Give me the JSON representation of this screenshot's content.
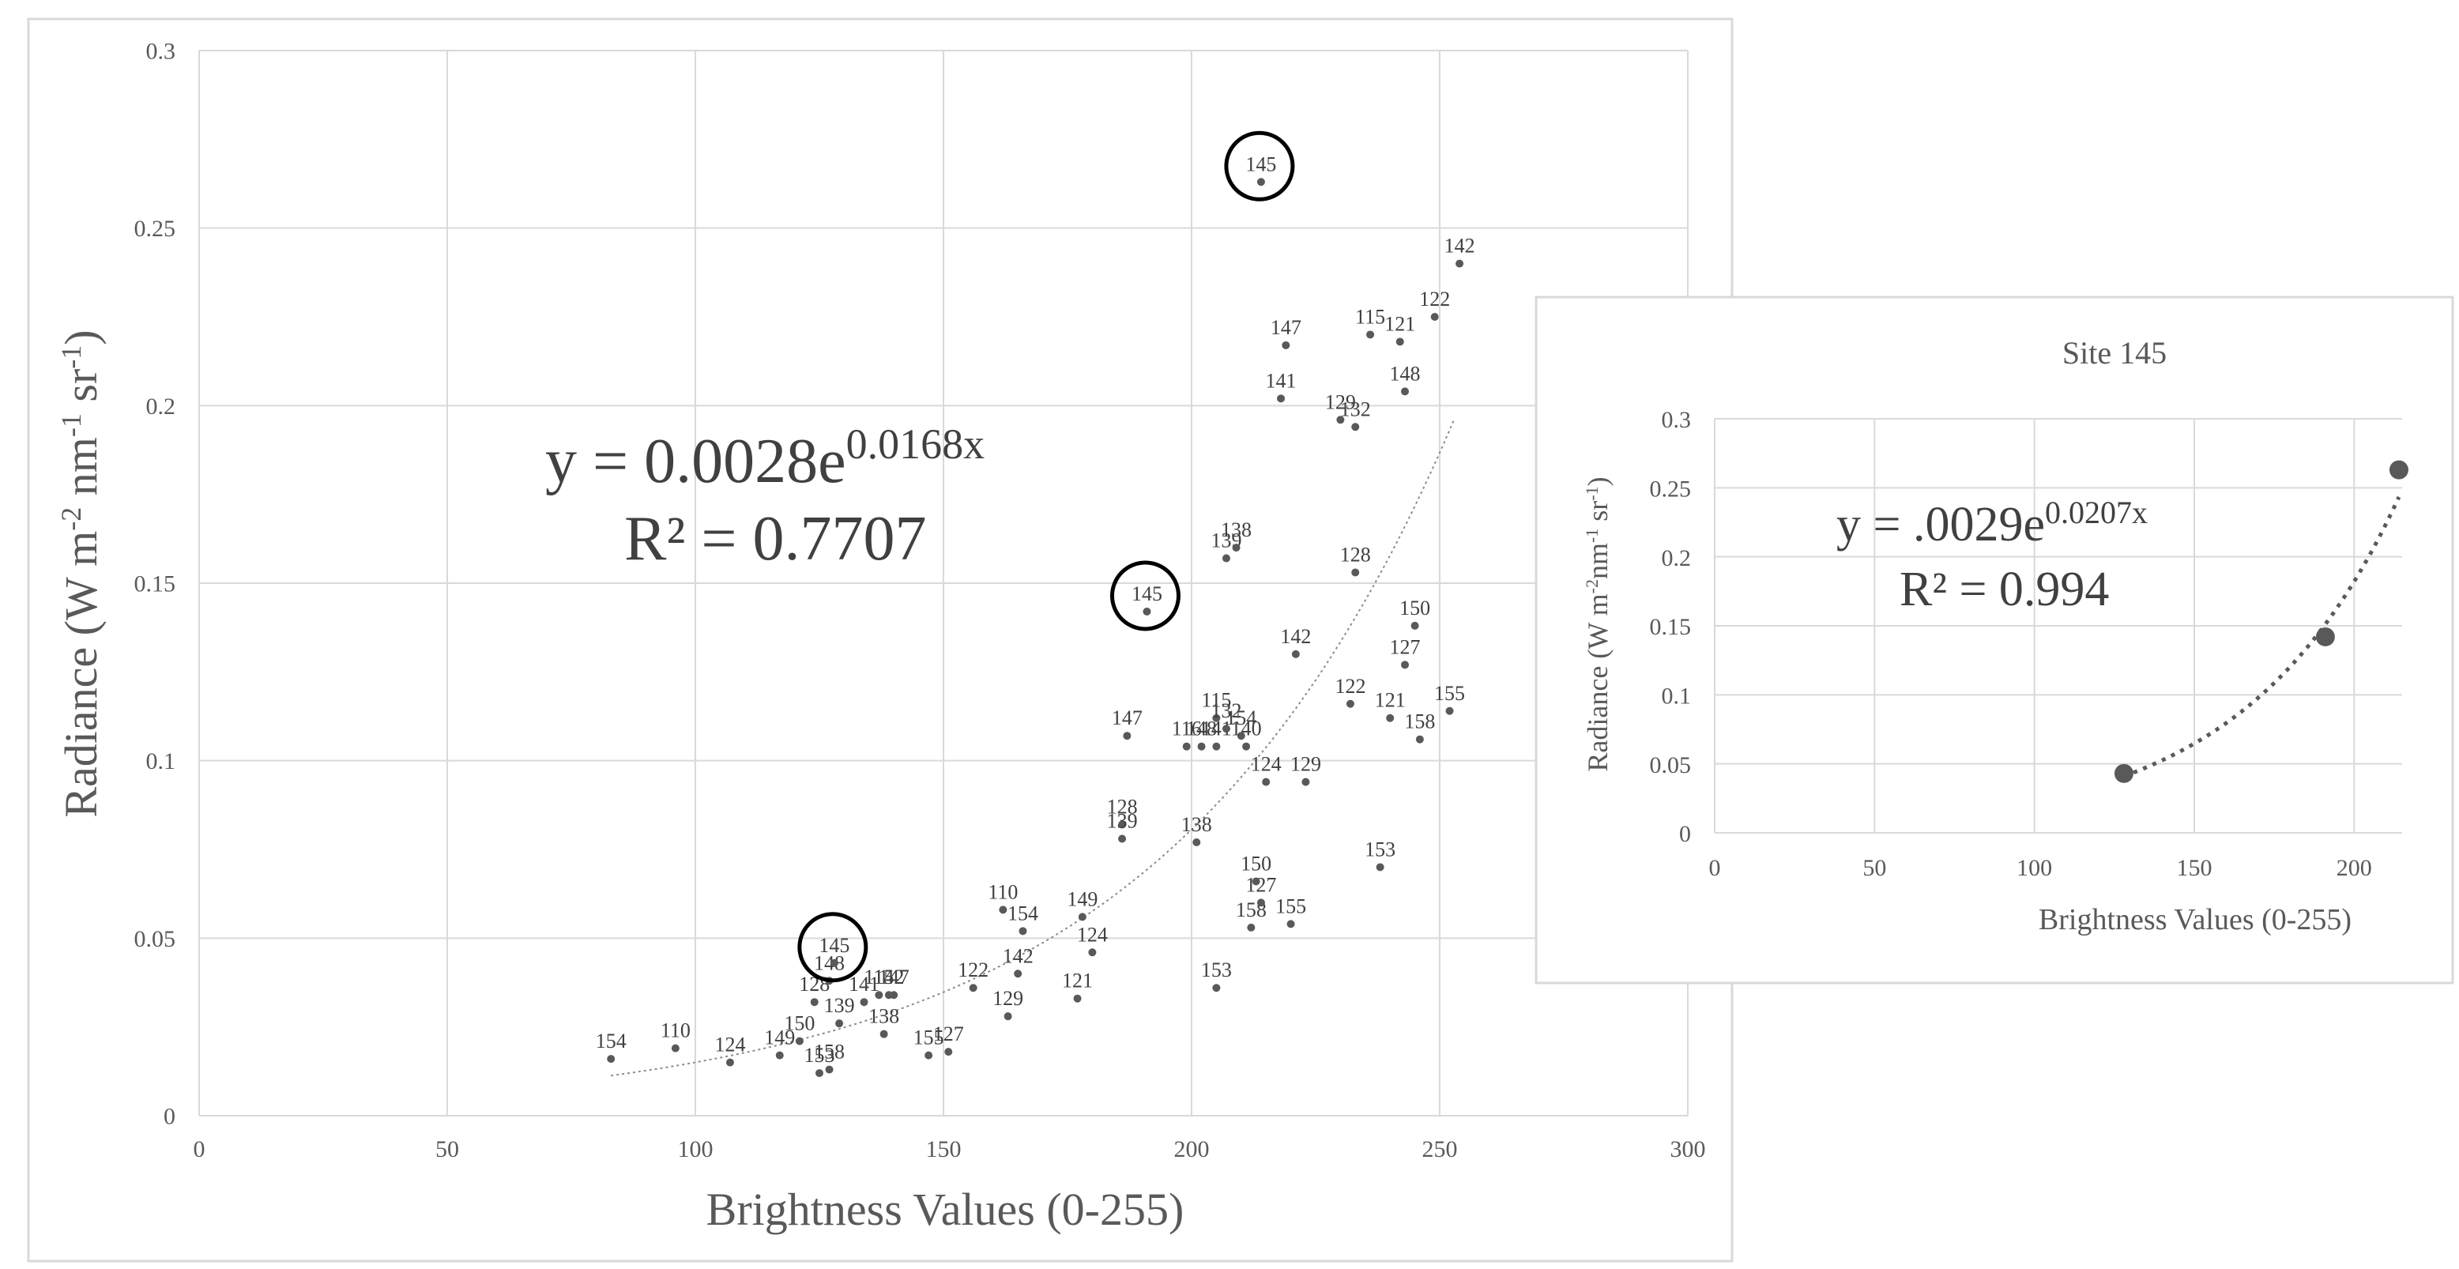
{
  "chart_data": [
    {
      "type": "scatter",
      "xlabel": "Brightness Values (0-255)",
      "ylabel_main": "Radiance (W m",
      "ylabel_sup1": "-2",
      "ylabel_mid": " nm",
      "ylabel_sup2": "-1",
      "ylabel_mid2": " sr",
      "ylabel_sup3": "-1",
      "ylabel_end": ")",
      "xlim": [
        0,
        300
      ],
      "ylim": [
        0,
        0.3
      ],
      "xticks": [
        "0",
        "50",
        "100",
        "150",
        "200",
        "250",
        "300"
      ],
      "yticks": [
        "0",
        "0.05",
        "0.1",
        "0.15",
        "0.2",
        "0.25",
        "0.3"
      ],
      "grid": true,
      "trendline": {
        "type": "exponential",
        "a": 0.0028,
        "b": 0.0168,
        "x_range": [
          83,
          253
        ]
      },
      "equation": {
        "base": "y = 0.0028e",
        "exponent": "0.0168x",
        "r2": "R² = 0.7707"
      },
      "circled_points": [
        {
          "label": "145",
          "x": 214,
          "y": 0.263
        },
        {
          "label": "145",
          "x": 191,
          "y": 0.142
        },
        {
          "label": "145",
          "x": 128,
          "y": 0.043
        }
      ],
      "points": [
        {
          "label": "154",
          "x": 83,
          "y": 0.016
        },
        {
          "label": "110",
          "x": 96,
          "y": 0.019
        },
        {
          "label": "124",
          "x": 107,
          "y": 0.015
        },
        {
          "label": "149",
          "x": 117,
          "y": 0.017
        },
        {
          "label": "150",
          "x": 121,
          "y": 0.021
        },
        {
          "label": "153",
          "x": 125,
          "y": 0.012
        },
        {
          "label": "158",
          "x": 127,
          "y": 0.013
        },
        {
          "label": "128",
          "x": 124,
          "y": 0.032
        },
        {
          "label": "139",
          "x": 129,
          "y": 0.026
        },
        {
          "label": "148",
          "x": 127,
          "y": 0.038
        },
        {
          "label": "141",
          "x": 134,
          "y": 0.032
        },
        {
          "label": "115",
          "x": 137,
          "y": 0.034
        },
        {
          "label": "142",
          "x": 139,
          "y": 0.034
        },
        {
          "label": "147",
          "x": 140,
          "y": 0.034
        },
        {
          "label": "138",
          "x": 138,
          "y": 0.023
        },
        {
          "label": "155",
          "x": 147,
          "y": 0.017
        },
        {
          "label": "127",
          "x": 151,
          "y": 0.018
        },
        {
          "label": "122",
          "x": 156,
          "y": 0.036
        },
        {
          "label": "129",
          "x": 163,
          "y": 0.028
        },
        {
          "label": "142",
          "x": 165,
          "y": 0.04
        },
        {
          "label": "110",
          "x": 162,
          "y": 0.058
        },
        {
          "label": "154",
          "x": 166,
          "y": 0.052
        },
        {
          "label": "121",
          "x": 177,
          "y": 0.033
        },
        {
          "label": "149",
          "x": 178,
          "y": 0.056
        },
        {
          "label": "124",
          "x": 180,
          "y": 0.046
        },
        {
          "label": "128",
          "x": 186,
          "y": 0.082
        },
        {
          "label": "139",
          "x": 186,
          "y": 0.078
        },
        {
          "label": "147",
          "x": 187,
          "y": 0.107
        },
        {
          "label": "138",
          "x": 201,
          "y": 0.077
        },
        {
          "label": "153",
          "x": 205,
          "y": 0.036
        },
        {
          "label": "158",
          "x": 212,
          "y": 0.053
        },
        {
          "label": "127",
          "x": 214,
          "y": 0.06
        },
        {
          "label": "150",
          "x": 213,
          "y": 0.066
        },
        {
          "label": "155",
          "x": 220,
          "y": 0.054
        },
        {
          "label": "116",
          "x": 199,
          "y": 0.104
        },
        {
          "label": "148",
          "x": 202,
          "y": 0.104
        },
        {
          "label": "141",
          "x": 205,
          "y": 0.104
        },
        {
          "label": "115",
          "x": 205,
          "y": 0.112
        },
        {
          "label": "132",
          "x": 207,
          "y": 0.109
        },
        {
          "label": "154",
          "x": 210,
          "y": 0.107
        },
        {
          "label": "140",
          "x": 211,
          "y": 0.104
        },
        {
          "label": "124",
          "x": 215,
          "y": 0.094
        },
        {
          "label": "129",
          "x": 223,
          "y": 0.094
        },
        {
          "label": "139",
          "x": 207,
          "y": 0.157
        },
        {
          "label": "138",
          "x": 209,
          "y": 0.16
        },
        {
          "label": "142",
          "x": 221,
          "y": 0.13
        },
        {
          "label": "128",
          "x": 233,
          "y": 0.153
        },
        {
          "label": "122",
          "x": 232,
          "y": 0.116
        },
        {
          "label": "121",
          "x": 240,
          "y": 0.112
        },
        {
          "label": "150",
          "x": 245,
          "y": 0.138
        },
        {
          "label": "127",
          "x": 243,
          "y": 0.127
        },
        {
          "label": "158",
          "x": 246,
          "y": 0.106
        },
        {
          "label": "155",
          "x": 252,
          "y": 0.114
        },
        {
          "label": "153",
          "x": 238,
          "y": 0.07
        },
        {
          "label": "147",
          "x": 219,
          "y": 0.217
        },
        {
          "label": "141",
          "x": 218,
          "y": 0.202
        },
        {
          "label": "129",
          "x": 230,
          "y": 0.196
        },
        {
          "label": "132",
          "x": 233,
          "y": 0.194
        },
        {
          "label": "115",
          "x": 236,
          "y": 0.22
        },
        {
          "label": "121",
          "x": 242,
          "y": 0.218
        },
        {
          "label": "122",
          "x": 249,
          "y": 0.225
        },
        {
          "label": "148",
          "x": 243,
          "y": 0.204
        },
        {
          "label": "142",
          "x": 254,
          "y": 0.24
        }
      ]
    },
    {
      "type": "scatter",
      "title": "Site 145",
      "xlabel": "Brightness Values (0-255)",
      "ylabel_main": "Radiance (W m",
      "ylabel_sup1": "-2",
      "ylabel_mid": "nm",
      "ylabel_sup2": "-1",
      "ylabel_mid2": " sr",
      "ylabel_sup3": "-1",
      "ylabel_end": ")",
      "xlim": [
        0,
        215
      ],
      "ylim": [
        0,
        0.3
      ],
      "xticks": [
        "0",
        "50",
        "100",
        "150",
        "200"
      ],
      "yticks": [
        "0",
        "0.05",
        "0.1",
        "0.15",
        "0.2",
        "0.25",
        "0.3"
      ],
      "grid": true,
      "trendline": {
        "type": "exponential",
        "a": 0.0029,
        "b": 0.0207,
        "x_range": [
          128,
          214
        ]
      },
      "equation": {
        "base": "y = .0029e",
        "exponent": "0.0207x",
        "r2": "R² = 0.994"
      },
      "points": [
        {
          "x": 128,
          "y": 0.043
        },
        {
          "x": 191,
          "y": 0.142
        },
        {
          "x": 214,
          "y": 0.263
        }
      ],
      "colors": {
        "points": "#595959"
      }
    }
  ]
}
